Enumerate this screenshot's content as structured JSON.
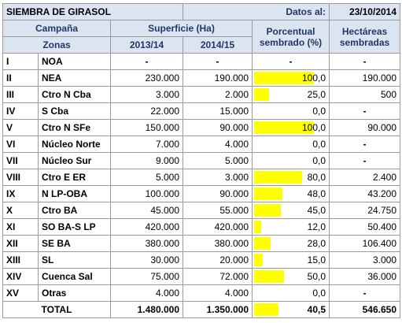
{
  "header": {
    "title": "SIEMBRA DE GIRASOL",
    "date_label": "Datos al:",
    "date": "23/10/2014"
  },
  "columns": {
    "campaign": "Campaña",
    "surface": "Superficie (Ha)",
    "percent": "Porcentual sembrado (%)",
    "hectares": "Hectáreas sembradas",
    "zones": "Zonas",
    "y1": "2013/14",
    "y2": "2014/15"
  },
  "table": {
    "rows": [
      [
        "I",
        "NOA",
        "-",
        "-",
        "-",
        "-"
      ],
      [
        "II",
        "NEA",
        "230.000",
        "190.000",
        "100,0",
        "190.000"
      ],
      [
        "III",
        "Ctro N Cba",
        "3.000",
        "2.000",
        "25,0",
        "500"
      ],
      [
        "IV",
        "S Cba",
        "22.000",
        "15.000",
        "0,0",
        "-"
      ],
      [
        "V",
        "Ctro N SFe",
        "150.000",
        "90.000",
        "100,0",
        "90.000"
      ],
      [
        "VI",
        "Núcleo Norte",
        "7.000",
        "4.000",
        "0,0",
        "-"
      ],
      [
        "VII",
        "Núcleo Sur",
        "9.000",
        "5.000",
        "0,0",
        "-"
      ],
      [
        "VIII",
        "Ctro E ER",
        "5.000",
        "3.000",
        "80,0",
        "2.400"
      ],
      [
        "IX",
        "N LP-OBA",
        "100.000",
        "90.000",
        "48,0",
        "43.200"
      ],
      [
        "X",
        "Ctro BA",
        "45.000",
        "55.000",
        "45,0",
        "24.750"
      ],
      [
        "XI",
        "SO BA-S LP",
        "420.000",
        "420.000",
        "12,0",
        "50.400"
      ],
      [
        "XII",
        "SE BA",
        "380.000",
        "380.000",
        "28,0",
        "106.400"
      ],
      [
        "XIII",
        "SL",
        "30.000",
        "20.000",
        "15,0",
        "3.000"
      ],
      [
        "XIV",
        "Cuenca Sal",
        "75.000",
        "72.000",
        "50,0",
        "36.000"
      ],
      [
        "XV",
        "Otras",
        "4.000",
        "4.000",
        "0,0",
        "-"
      ]
    ],
    "total": [
      "TOTAL",
      "1.480.000",
      "1.350.000",
      "40,5",
      "546.650"
    ]
  }
}
